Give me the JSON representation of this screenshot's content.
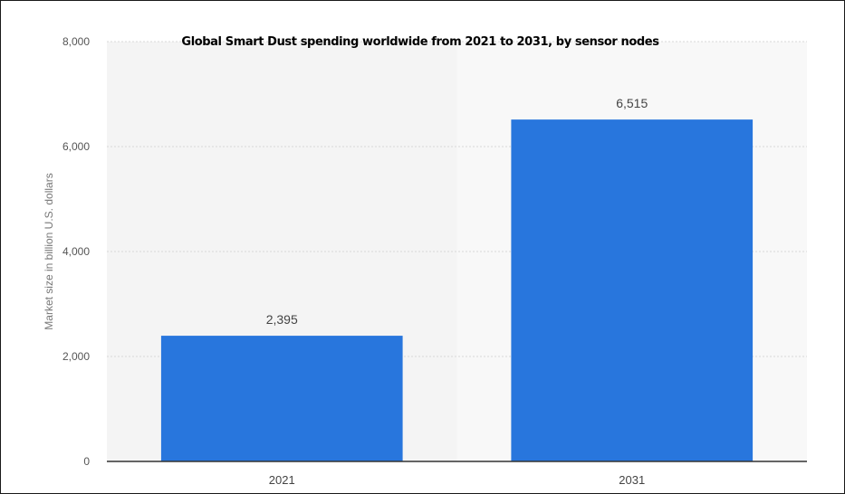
{
  "chart_data": {
    "type": "bar",
    "title": "Global Smart Dust spending worldwide from 2021 to 2031, by sensor nodes",
    "xlabel": "",
    "ylabel": "Market size in billion U.S. dollars",
    "categories": [
      "2021",
      "2031"
    ],
    "values": [
      2395,
      6515
    ],
    "value_labels": [
      "2,395",
      "6,515"
    ],
    "ylim": [
      0,
      8000
    ],
    "yticks": [
      0,
      2000,
      4000,
      6000,
      8000
    ],
    "ytick_labels": [
      "0",
      "2,000",
      "4,000",
      "6,000",
      "8,000"
    ],
    "grid": true,
    "legend": "none",
    "colors": {
      "bar": "#2876dd",
      "plot_background": "#f4f4f4",
      "highlight_band": "#f8f8f8",
      "grid": "#d9d9d9",
      "axis": "#333333"
    }
  }
}
